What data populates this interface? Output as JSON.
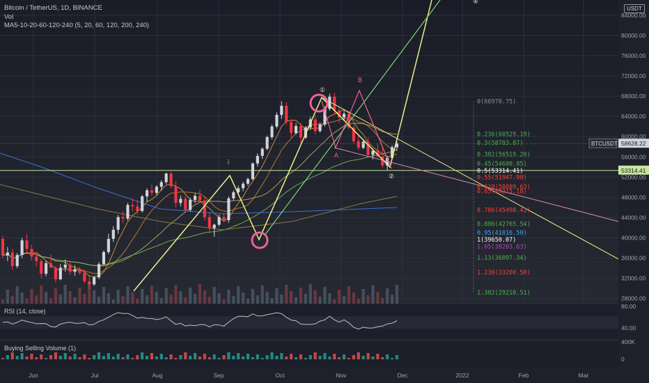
{
  "header": {
    "symbol_title": "Bitcoin / TetherUS, 1D, BINANCE",
    "volume_label": "Vol",
    "ma_label": "MA5-10-20-60-120-240 (5, 20, 60, 120, 200, 240)",
    "unit": "USDT"
  },
  "panes": {
    "rsi_label": "RSI (14, close)",
    "bsv_label": "Buying Selling Volume (1)",
    "rsi_ticks": [
      "80.00",
      "40.00"
    ],
    "bsv_ticks": [
      "400K",
      "0"
    ]
  },
  "price_tags": {
    "current_symbol": "BTCUSDT",
    "current_value": "58628.22",
    "level_value": "53314.41"
  },
  "colors": {
    "up": "#d1d4dc",
    "down": "#f23645",
    "fib_green": "#4caf50",
    "fib_red": "#f44336",
    "fib_blue": "#42a5f5",
    "fib_purple": "#ab47bc",
    "wave_yellow": "#f0f08a",
    "channel_green": "#7bd67b",
    "circle_pink": "#f06292"
  },
  "chart_data": {
    "type": "candlestick",
    "x_axis_labels": [
      "Jun",
      "Jul",
      "Aug",
      "Sep",
      "Oct",
      "Nov",
      "Dec",
      "2022",
      "Feb",
      "Mar"
    ],
    "y_axis_labels": [
      "84000.00",
      "80000.00",
      "76000.00",
      "72000.00",
      "68000.00",
      "64000.00",
      "60000.00",
      "56000.00",
      "52000.00",
      "48000.00",
      "44000.00",
      "40000.00",
      "36000.00",
      "32000.00",
      "28000.00"
    ],
    "ylim": [
      27000,
      87000
    ],
    "series_ohlc": [
      [
        39800,
        40400,
        36000,
        36500
      ],
      [
        36500,
        38200,
        35400,
        37100
      ],
      [
        37100,
        37800,
        33700,
        34400
      ],
      [
        34400,
        37000,
        34000,
        36600
      ],
      [
        36600,
        40000,
        36000,
        39500
      ],
      [
        39500,
        40700,
        37000,
        37800
      ],
      [
        37800,
        38600,
        35500,
        36300
      ],
      [
        36300,
        37200,
        34300,
        35400
      ],
      [
        35400,
        35900,
        32100,
        32900
      ],
      [
        32900,
        35500,
        32400,
        35000
      ],
      [
        35000,
        36700,
        34300,
        34100
      ],
      [
        34100,
        34500,
        31100,
        31800
      ],
      [
        31800,
        34800,
        31600,
        34100
      ],
      [
        34100,
        35700,
        33300,
        34700
      ],
      [
        34700,
        35100,
        32600,
        33300
      ],
      [
        33300,
        34600,
        32500,
        33800
      ],
      [
        33800,
        34300,
        32700,
        33100
      ],
      [
        33100,
        33700,
        31000,
        31400
      ],
      [
        31400,
        32600,
        29800,
        30800
      ],
      [
        30800,
        32500,
        30500,
        32200
      ],
      [
        32200,
        35200,
        31900,
        34800
      ],
      [
        34800,
        37500,
        34600,
        37200
      ],
      [
        37200,
        40800,
        36800,
        39800
      ],
      [
        39800,
        42300,
        39200,
        41600
      ],
      [
        41600,
        44500,
        40800,
        44100
      ],
      [
        44100,
        45300,
        42900,
        43800
      ],
      [
        43800,
        46900,
        43400,
        46500
      ],
      [
        46500,
        47700,
        45200,
        46200
      ],
      [
        46200,
        47500,
        44600,
        45300
      ],
      [
        45300,
        48500,
        45000,
        48200
      ],
      [
        48200,
        49800,
        47100,
        49400
      ],
      [
        49400,
        50500,
        48300,
        48900
      ],
      [
        48900,
        50400,
        48500,
        50100
      ],
      [
        50100,
        51400,
        49300,
        51000
      ],
      [
        51000,
        52900,
        50600,
        52700
      ],
      [
        52700,
        53100,
        49800,
        50200
      ],
      [
        50200,
        51200,
        46000,
        46900
      ],
      [
        46900,
        48400,
        46200,
        47700
      ],
      [
        47700,
        48200,
        44900,
        45500
      ],
      [
        45500,
        47900,
        45100,
        47500
      ],
      [
        47500,
        48800,
        46900,
        48300
      ],
      [
        48300,
        49500,
        46900,
        47400
      ],
      [
        47400,
        48000,
        43400,
        44100
      ],
      [
        44100,
        45100,
        40900,
        41900
      ],
      [
        41900,
        42800,
        40200,
        42600
      ],
      [
        42600,
        44600,
        42300,
        44100
      ],
      [
        44100,
        44900,
        43100,
        43500
      ],
      [
        43500,
        48200,
        43000,
        47800
      ],
      [
        47800,
        49400,
        47400,
        49000
      ],
      [
        49000,
        50300,
        48500,
        49800
      ],
      [
        49800,
        51100,
        49200,
        50700
      ],
      [
        50700,
        51900,
        50300,
        51600
      ],
      [
        51600,
        54900,
        51400,
        54700
      ],
      [
        54700,
        56700,
        54100,
        56200
      ],
      [
        56200,
        57900,
        55600,
        57600
      ],
      [
        57600,
        60200,
        57300,
        59900
      ],
      [
        59900,
        62400,
        59500,
        62000
      ],
      [
        62000,
        64800,
        61600,
        64300
      ],
      [
        64300,
        67000,
        63500,
        66100
      ],
      [
        66100,
        66800,
        62300,
        62900
      ],
      [
        62900,
        63500,
        59800,
        60700
      ],
      [
        60700,
        62700,
        60400,
        62100
      ],
      [
        62100,
        62700,
        58600,
        59800
      ],
      [
        59800,
        62100,
        59500,
        61800
      ],
      [
        61800,
        63900,
        61300,
        63400
      ],
      [
        63400,
        64200,
        60400,
        61100
      ],
      [
        61100,
        62800,
        60800,
        62400
      ],
      [
        62400,
        66000,
        62000,
        65500
      ],
      [
        65500,
        68500,
        65100,
        67900
      ],
      [
        67900,
        68700,
        64500,
        65200
      ],
      [
        65200,
        66000,
        62700,
        63800
      ],
      [
        63800,
        65300,
        63000,
        64500
      ],
      [
        64500,
        65100,
        61400,
        61800
      ],
      [
        61800,
        62300,
        58600,
        59100
      ],
      [
        59100,
        60100,
        57300,
        57800
      ],
      [
        57800,
        59500,
        57500,
        59000
      ],
      [
        59000,
        59900,
        55800,
        56400
      ],
      [
        56400,
        57600,
        55500,
        57200
      ],
      [
        57200,
        58600,
        55900,
        56100
      ],
      [
        56100,
        57800,
        53800,
        54300
      ],
      [
        54300,
        56200,
        53300,
        55800
      ],
      [
        55800,
        58300,
        55400,
        57900
      ],
      [
        57900,
        59200,
        57300,
        58628
      ]
    ],
    "fib_levels": [
      {
        "ratio": "0",
        "label": "0(66978.75)",
        "value": 66978.75
      },
      {
        "ratio": "0.236",
        "label": "0.236(60529.19)",
        "value": 60529.19
      },
      {
        "ratio": "0.3",
        "label": "0.3(58783.87)",
        "value": 58783.87
      },
      {
        "ratio": "0.382",
        "label": "0.382(56519.20)",
        "value": 56519.2
      },
      {
        "ratio": "0.45",
        "label": "0.45(54680.85)",
        "value": 54680.85
      },
      {
        "ratio": "0.5",
        "label": "0.5(53314.41)",
        "value": 53314.41
      },
      {
        "ratio": "0.55",
        "label": "0.55(51947.98)",
        "value": 51947.98
      },
      {
        "ratio": "0.618",
        "label": "0.618(50089.63)",
        "value": 50089.63
      },
      {
        "ratio": "0.65",
        "label": "0.65(49215.18)",
        "value": 49215.18
      },
      {
        "ratio": "0.786",
        "label": "0.786(45498.41)",
        "value": 45498.41
      },
      {
        "ratio": "0.886",
        "label": "0.886(42765.54)",
        "value": 42765.54
      },
      {
        "ratio": "0.95",
        "label": "0.95(41016.50)",
        "value": 41016.5
      },
      {
        "ratio": "1",
        "label": "1(39650.07)",
        "value": 39650.07
      },
      {
        "ratio": "1.05",
        "label": "1.05(38283.63)",
        "value": 38283.63
      },
      {
        "ratio": "1.13",
        "label": "1.13(36097.34)",
        "value": 36097.34
      },
      {
        "ratio": "1.236",
        "label": "1.236(33200.50)",
        "value": 33200.5
      },
      {
        "ratio": "1.382",
        "label": "1.382(29210.51)",
        "value": 29210.51
      }
    ],
    "wave_labels": [
      "i",
      "①",
      "②",
      "④",
      "A",
      "B"
    ],
    "rsi_range": [
      0,
      100
    ]
  }
}
